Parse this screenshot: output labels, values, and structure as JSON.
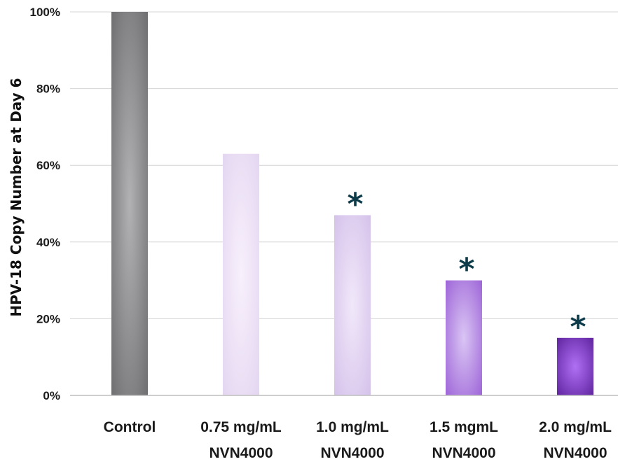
{
  "chart_data": {
    "type": "bar",
    "ylabel": "HPV-18 Copy Number at Day 6",
    "xlabel": "",
    "ylim": [
      0,
      100
    ],
    "yticks": [
      "0%",
      "20%",
      "40%",
      "60%",
      "80%",
      "100%"
    ],
    "grid": true,
    "categories": [
      [
        "Control"
      ],
      [
        "0.75 mg/mL",
        "NVN4000"
      ],
      [
        "1.0 mg/mL",
        "NVN4000"
      ],
      [
        "1.5 mgmL",
        "NVN4000"
      ],
      [
        "2.0 mg/mL",
        "NVN4000"
      ]
    ],
    "values": [
      100,
      63,
      47,
      30,
      15
    ],
    "significance": [
      "",
      "",
      "*",
      "*",
      "*"
    ],
    "colors": [
      {
        "edge": "#6a6a6c",
        "center": "#b2b2b4"
      },
      {
        "edge": "#e2d4f0",
        "center": "#f8f0fc"
      },
      {
        "edge": "#d3bfe9",
        "center": "#f1e8fa"
      },
      {
        "edge": "#9a5fd6",
        "center": "#dac5f4"
      },
      {
        "edge": "#5a1f9a",
        "center": "#b070f4"
      }
    ]
  }
}
